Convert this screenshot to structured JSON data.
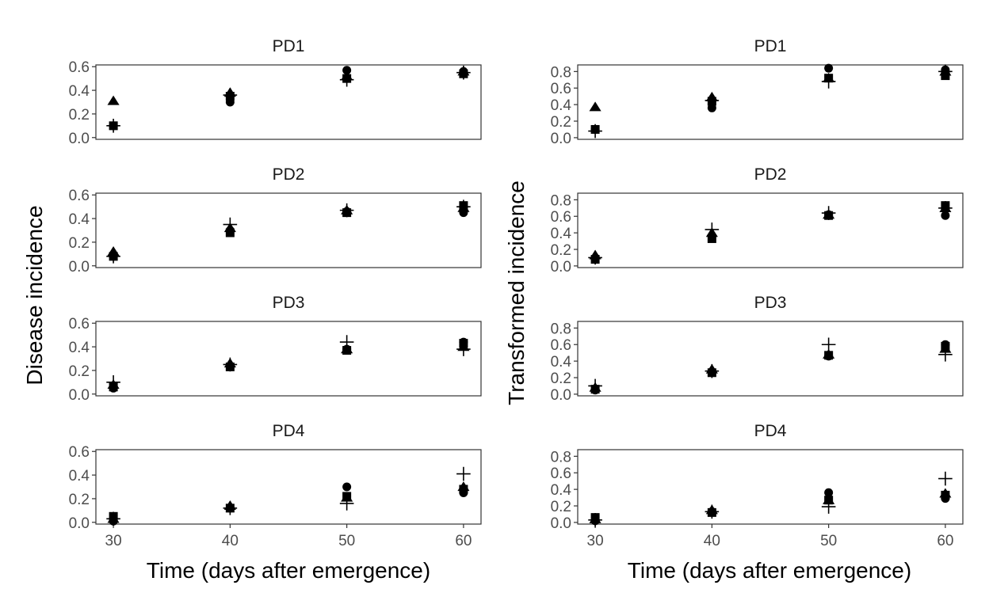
{
  "chart_data": [
    {
      "type": "scatter",
      "ylabel": "Disease incidence",
      "xlabel": "Time (days after emergence)",
      "xlim": [
        28.5,
        61.5
      ],
      "ylim": [
        -0.015,
        0.615
      ],
      "x_ticks": [
        30,
        40,
        50,
        60
      ],
      "y_ticks": [
        0.0,
        0.2,
        0.4,
        0.6
      ],
      "y_tick_labels": [
        "0.0",
        "0.2",
        "0.4",
        "0.6"
      ],
      "grid": false,
      "marker_color": "#000000",
      "facets": [
        {
          "title": "PD1",
          "series": [
            {
              "marker": "circle",
              "x": [
                30,
                40,
                50,
                60
              ],
              "y": [
                0.1,
                0.3,
                0.57,
                0.56
              ]
            },
            {
              "marker": "triangle",
              "x": [
                30,
                40,
                50,
                60
              ],
              "y": [
                0.31,
                0.38,
                0.52,
                0.56
              ]
            },
            {
              "marker": "square",
              "x": [
                30,
                40,
                50,
                60
              ],
              "y": [
                0.1,
                0.35,
                0.5,
                0.54
              ]
            },
            {
              "marker": "plus",
              "x": [
                30,
                40,
                50,
                60
              ],
              "y": [
                0.1,
                0.36,
                0.49,
                0.55
              ]
            }
          ]
        },
        {
          "title": "PD2",
          "series": [
            {
              "marker": "circle",
              "x": [
                30,
                40,
                50,
                60
              ],
              "y": [
                0.08,
                0.3,
                0.46,
                0.45
              ]
            },
            {
              "marker": "triangle",
              "x": [
                30,
                40,
                50,
                60
              ],
              "y": [
                0.12,
                0.32,
                0.47,
                0.49
              ]
            },
            {
              "marker": "square",
              "x": [
                30,
                40,
                50,
                60
              ],
              "y": [
                0.08,
                0.28,
                0.45,
                0.51
              ]
            },
            {
              "marker": "plus",
              "x": [
                30,
                40,
                50,
                60
              ],
              "y": [
                0.08,
                0.35,
                0.47,
                0.5
              ]
            }
          ]
        },
        {
          "title": "PD3",
          "series": [
            {
              "marker": "circle",
              "x": [
                30,
                40,
                50,
                60
              ],
              "y": [
                0.05,
                0.23,
                0.38,
                0.44
              ]
            },
            {
              "marker": "triangle",
              "x": [
                30,
                40,
                50,
                60
              ],
              "y": [
                0.08,
                0.26,
                0.38,
                0.4
              ]
            },
            {
              "marker": "square",
              "x": [
                30,
                40,
                50,
                60
              ],
              "y": [
                0.06,
                0.23,
                0.37,
                0.43
              ]
            },
            {
              "marker": "plus",
              "x": [
                30,
                40,
                50,
                60
              ],
              "y": [
                0.1,
                0.25,
                0.44,
                0.38
              ]
            }
          ]
        },
        {
          "title": "PD4",
          "series": [
            {
              "marker": "circle",
              "x": [
                30,
                40,
                50,
                60
              ],
              "y": [
                0.01,
                0.12,
                0.3,
                0.25
              ]
            },
            {
              "marker": "triangle",
              "x": [
                30,
                40,
                50,
                60
              ],
              "y": [
                0.03,
                0.14,
                0.21,
                0.3
              ]
            },
            {
              "marker": "square",
              "x": [
                30,
                40,
                50,
                60
              ],
              "y": [
                0.05,
                0.12,
                0.22,
                0.28
              ]
            },
            {
              "marker": "plus",
              "x": [
                30,
                40,
                50,
                60
              ],
              "y": [
                0.03,
                0.12,
                0.16,
                0.41
              ]
            }
          ]
        }
      ]
    },
    {
      "type": "scatter",
      "ylabel": "Transformed incidence",
      "xlabel": "Time (days after emergence)",
      "xlim": [
        28.5,
        61.5
      ],
      "ylim": [
        -0.02,
        0.88
      ],
      "x_ticks": [
        30,
        40,
        50,
        60
      ],
      "y_ticks": [
        0.0,
        0.2,
        0.4,
        0.6,
        0.8
      ],
      "y_tick_labels": [
        "0.0",
        "0.2",
        "0.4",
        "0.6",
        "0.8"
      ],
      "grid": false,
      "marker_color": "#000000",
      "facets": [
        {
          "title": "PD1",
          "series": [
            {
              "marker": "circle",
              "x": [
                30,
                40,
                50,
                60
              ],
              "y": [
                0.1,
                0.36,
                0.84,
                0.82
              ]
            },
            {
              "marker": "triangle",
              "x": [
                30,
                40,
                50,
                60
              ],
              "y": [
                0.37,
                0.49,
                0.72,
                0.8
              ]
            },
            {
              "marker": "square",
              "x": [
                30,
                40,
                50,
                60
              ],
              "y": [
                0.1,
                0.44,
                0.72,
                0.75
              ]
            },
            {
              "marker": "plus",
              "x": [
                30,
                40,
                50,
                60
              ],
              "y": [
                0.08,
                0.45,
                0.68,
                0.8
              ]
            }
          ]
        },
        {
          "title": "PD2",
          "series": [
            {
              "marker": "circle",
              "x": [
                30,
                40,
                50,
                60
              ],
              "y": [
                0.08,
                0.36,
                0.62,
                0.61
              ]
            },
            {
              "marker": "triangle",
              "x": [
                30,
                40,
                50,
                60
              ],
              "y": [
                0.13,
                0.4,
                0.62,
                0.7
              ]
            },
            {
              "marker": "square",
              "x": [
                30,
                40,
                50,
                60
              ],
              "y": [
                0.08,
                0.33,
                0.61,
                0.73
              ]
            },
            {
              "marker": "plus",
              "x": [
                30,
                40,
                50,
                60
              ],
              "y": [
                0.1,
                0.44,
                0.64,
                0.7
              ]
            }
          ]
        },
        {
          "title": "PD3",
          "series": [
            {
              "marker": "circle",
              "x": [
                30,
                40,
                50,
                60
              ],
              "y": [
                0.05,
                0.26,
                0.46,
                0.6
              ]
            },
            {
              "marker": "triangle",
              "x": [
                30,
                40,
                50,
                60
              ],
              "y": [
                0.08,
                0.3,
                0.48,
                0.55
              ]
            },
            {
              "marker": "square",
              "x": [
                30,
                40,
                50,
                60
              ],
              "y": [
                0.06,
                0.26,
                0.47,
                0.58
              ]
            },
            {
              "marker": "plus",
              "x": [
                30,
                40,
                50,
                60
              ],
              "y": [
                0.1,
                0.28,
                0.6,
                0.48
              ]
            }
          ]
        },
        {
          "title": "PD4",
          "series": [
            {
              "marker": "circle",
              "x": [
                30,
                40,
                50,
                60
              ],
              "y": [
                0.02,
                0.13,
                0.36,
                0.29
              ]
            },
            {
              "marker": "triangle",
              "x": [
                30,
                40,
                50,
                60
              ],
              "y": [
                0.04,
                0.15,
                0.27,
                0.35
              ]
            },
            {
              "marker": "square",
              "x": [
                30,
                40,
                50,
                60
              ],
              "y": [
                0.06,
                0.12,
                0.27,
                0.33
              ]
            },
            {
              "marker": "plus",
              "x": [
                30,
                40,
                50,
                60
              ],
              "y": [
                0.03,
                0.13,
                0.19,
                0.53
              ]
            }
          ]
        }
      ]
    }
  ]
}
